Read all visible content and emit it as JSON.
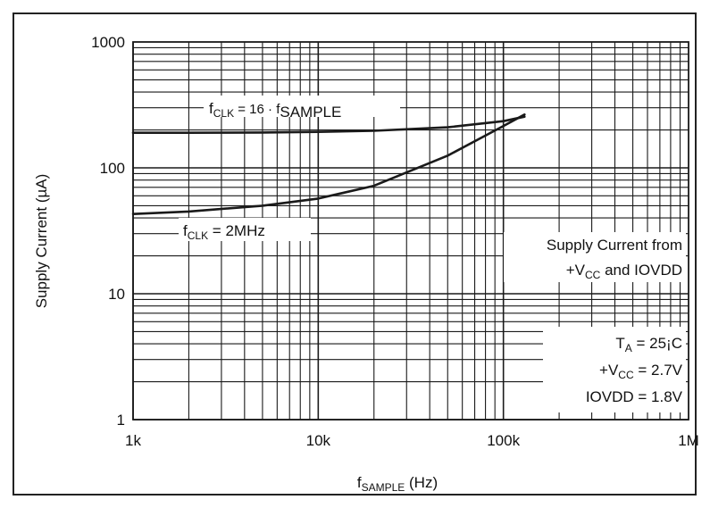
{
  "chart_data": {
    "type": "line",
    "x_scale": "log",
    "y_scale": "log",
    "xlim": [
      1000,
      1000000
    ],
    "ylim": [
      1,
      1000
    ],
    "grid": true,
    "x_ticks": [
      {
        "value": 1000,
        "label": "1k"
      },
      {
        "value": 10000,
        "label": "10k"
      },
      {
        "value": 100000,
        "label": "100k"
      },
      {
        "value": 1000000,
        "label": "1M"
      }
    ],
    "y_ticks": [
      {
        "value": 1,
        "label": "1"
      },
      {
        "value": 10,
        "label": "10"
      },
      {
        "value": 100,
        "label": "100"
      },
      {
        "value": 1000,
        "label": "1000"
      }
    ],
    "xlabel": {
      "main": "f",
      "sub": "SAMPLE",
      "rest": " (Hz)"
    },
    "ylabel": "Supply Current (µA)",
    "series": [
      {
        "label": {
          "a": "f",
          "a_sub": "CLK",
          "b": " = 16 · f",
          "b_sub": "SAMPLE"
        },
        "x": [
          1000,
          2000,
          5000,
          10000,
          20000,
          50000,
          100000,
          130000
        ],
        "y": [
          190,
          190,
          191,
          193,
          197,
          210,
          235,
          255
        ]
      },
      {
        "label": {
          "a": "f",
          "a_sub": "CLK",
          "b": " = 2MHz",
          "b_sub": ""
        },
        "x": [
          1000,
          2000,
          5000,
          10000,
          20000,
          50000,
          100000,
          130000
        ],
        "y": [
          43,
          45,
          50,
          57,
          72,
          125,
          215,
          265
        ]
      }
    ],
    "annotations": {
      "supply_note": {
        "line1": "Supply Current from",
        "line2_a": "+V",
        "line2_sub": "CC",
        "line2_b": " and IOVDD"
      },
      "conditions": {
        "ta_a": "T",
        "ta_sub": "A",
        "ta_b": " = 25¡C",
        "vcc_a": "+V",
        "vcc_sub": "CC",
        "vcc_b": " = 2.7V",
        "iovdd": "IOVDD = 1.8V"
      }
    },
    "line_color": "#1a1a1a",
    "grid_color": "#1a1a1a"
  }
}
